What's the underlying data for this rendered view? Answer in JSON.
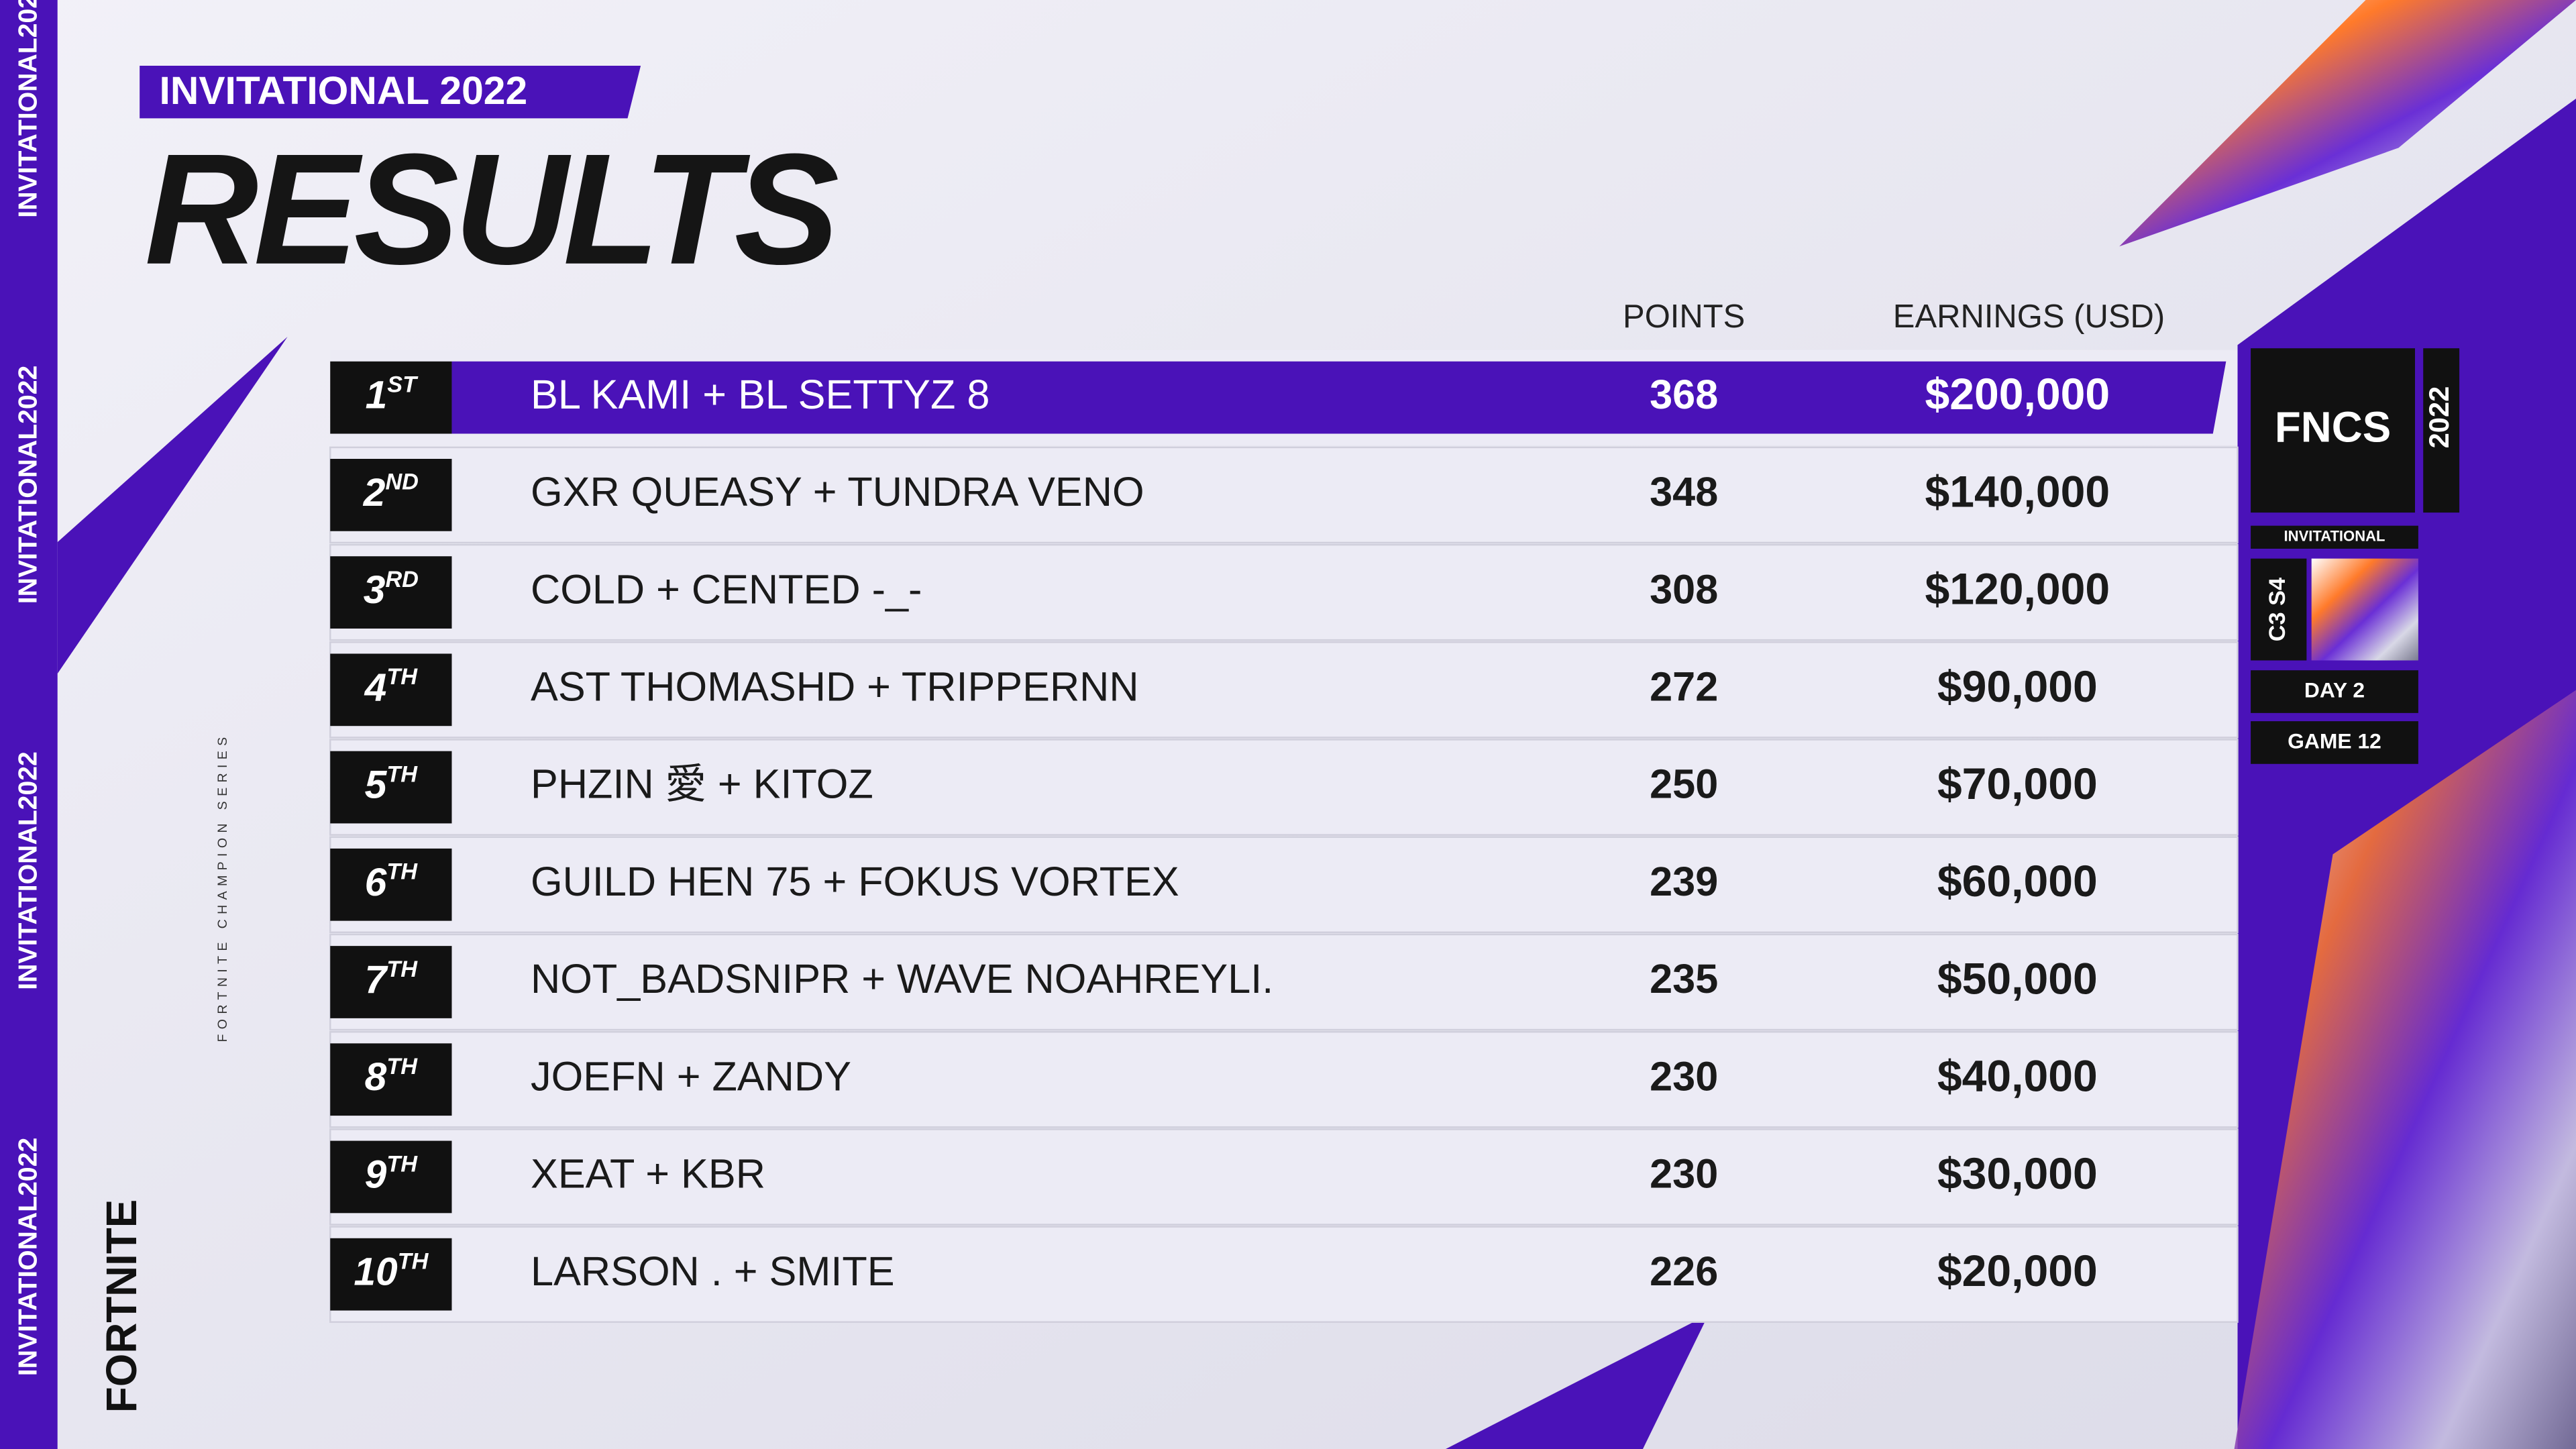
{
  "header": {
    "badge": "INVITATIONAL 2022",
    "title": "RESULTS"
  },
  "table": {
    "columns": [
      "POINTS",
      "EARNINGS (USD)"
    ],
    "rows": [
      [
        "1",
        "ST",
        "BL KAMI + BL SETTYZ 8",
        "368",
        "$200,000"
      ],
      [
        "2",
        "ND",
        "GXR QUEASY + TUNDRA VENO",
        "348",
        "$140,000"
      ],
      [
        "3",
        "RD",
        "COLD + CENTED -_-",
        "308",
        "$120,000"
      ],
      [
        "4",
        "TH",
        "AST THOMASHD + TRIPPERNN",
        "272",
        "$90,000"
      ],
      [
        "5",
        "TH",
        "PHZIN 愛 + KITOZ",
        "250",
        "$70,000"
      ],
      [
        "6",
        "TH",
        "GUILD HEN 75 + FOKUS VORTEX",
        "239",
        "$60,000"
      ],
      [
        "7",
        "TH",
        "NOT_BADSNIPR + WAVE NOAHREYLI.",
        "235",
        "$50,000"
      ],
      [
        "8",
        "TH",
        "JOEFN + ZANDY",
        "230",
        "$40,000"
      ],
      [
        "9",
        "TH",
        "XEAT + KBR",
        "230",
        "$30,000"
      ],
      [
        "10",
        "TH",
        "LARSON . + SMITE",
        "226",
        "$20,000"
      ]
    ]
  },
  "sidebar": {
    "logo": "FNCS",
    "event": "INVITATIONAL",
    "year": "2022",
    "season": "C3 S4",
    "day": "DAY 2",
    "game": "GAME 12"
  },
  "side_text": "INVITATIONAL2022",
  "brand": "FORTNITE",
  "series": "FORTNITE CHAMPION SERIES"
}
